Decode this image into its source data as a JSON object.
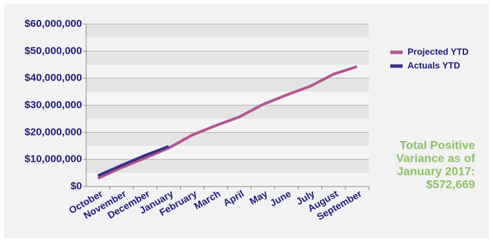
{
  "chart_data": {
    "type": "line",
    "categories": [
      "October",
      "November",
      "December",
      "January",
      "February",
      "March",
      "April",
      "May",
      "June",
      "July",
      "August",
      "September"
    ],
    "series": [
      {
        "name": "Projected YTD",
        "color": "#b5558f",
        "values": [
          3000000,
          7000000,
          10500000,
          14200000,
          19000000,
          22500000,
          25700000,
          30300000,
          33800000,
          37000000,
          41500000,
          44300000
        ]
      },
      {
        "name": "Actuals YTD",
        "color": "#3b2f8a",
        "values": [
          4000000,
          7800000,
          11500000,
          14800000,
          null,
          null,
          null,
          null,
          null,
          null,
          null,
          null
        ]
      }
    ],
    "ylim": [
      0,
      60000000
    ],
    "yticks": [
      {
        "value": 0,
        "label": "$0"
      },
      {
        "value": 10000000,
        "label": "$10,000,000"
      },
      {
        "value": 20000000,
        "label": "$20,000,000"
      },
      {
        "value": 30000000,
        "label": "$30,000,000"
      },
      {
        "value": 40000000,
        "label": "$40,000,000"
      },
      {
        "value": 50000000,
        "label": "$50,000,000"
      },
      {
        "value": 60000000,
        "label": "$60,000,000"
      }
    ],
    "annotation": [
      "Total Positive",
      "Variance as of",
      "January 2017:",
      "$572,669"
    ],
    "annotation_color": "#8dc263",
    "legend": "right",
    "grid": true
  }
}
